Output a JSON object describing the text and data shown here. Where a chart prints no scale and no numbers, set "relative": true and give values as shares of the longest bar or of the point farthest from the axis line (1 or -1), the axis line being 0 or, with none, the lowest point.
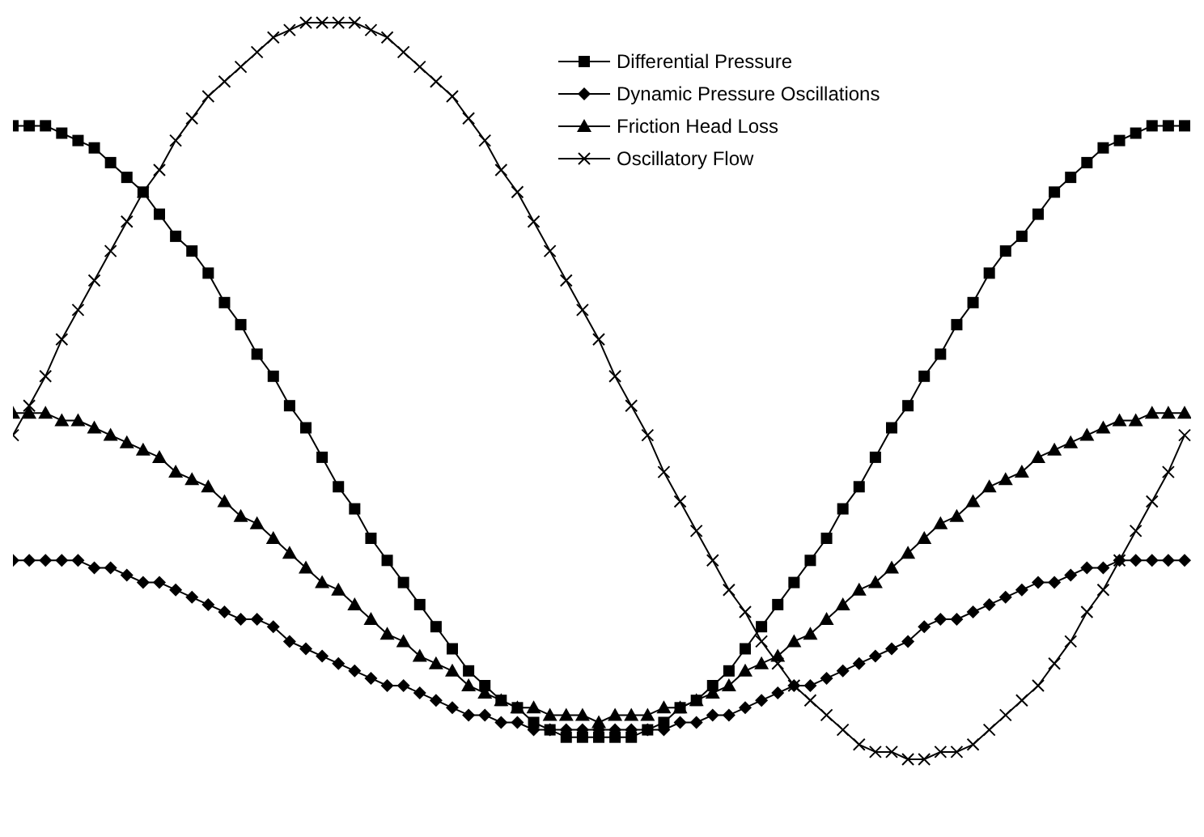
{
  "chart_data": {
    "type": "line",
    "relative": true,
    "categories": [
      null,
      null,
      null,
      null,
      null,
      null,
      null,
      null,
      null,
      null,
      null,
      null,
      null,
      null,
      null,
      null,
      null,
      null,
      null,
      null,
      null,
      null,
      null,
      null,
      null,
      null,
      null,
      null,
      null,
      null,
      null,
      null,
      null,
      null,
      null,
      null,
      null,
      null,
      null,
      null,
      null,
      null,
      null,
      null,
      null,
      null,
      null,
      null,
      null,
      null,
      null,
      null,
      null,
      null,
      null,
      null,
      null,
      null,
      null,
      null,
      null,
      null,
      null,
      null,
      null,
      null,
      null,
      null,
      null,
      null,
      null,
      null,
      null
    ],
    "legend": "top",
    "grid": false,
    "line_style": "solid",
    "series": [
      {
        "name": "Differential Pressure",
        "color": "#000000",
        "marker": "square",
        "values": [
          0.86,
          0.86,
          0.86,
          0.85,
          0.84,
          0.83,
          0.81,
          0.79,
          0.77,
          0.74,
          0.71,
          0.69,
          0.66,
          0.62,
          0.59,
          0.55,
          0.52,
          0.48,
          0.45,
          0.41,
          0.37,
          0.34,
          0.3,
          0.27,
          0.24,
          0.21,
          0.18,
          0.15,
          0.12,
          0.1,
          0.08,
          0.07,
          0.05,
          0.04,
          0.03,
          0.03,
          0.03,
          0.03,
          0.03,
          0.04,
          0.05,
          0.07,
          0.08,
          0.1,
          0.12,
          0.15,
          0.18,
          0.21,
          0.24,
          0.27,
          0.3,
          0.34,
          0.37,
          0.41,
          0.45,
          0.48,
          0.52,
          0.55,
          0.59,
          0.62,
          0.66,
          0.69,
          0.71,
          0.74,
          0.77,
          0.79,
          0.81,
          0.83,
          0.84,
          0.85,
          0.86,
          0.86,
          0.86
        ]
      },
      {
        "name": "Dynamic Pressure Oscillations",
        "color": "#000000",
        "marker": "diamond",
        "values": [
          0.27,
          0.27,
          0.27,
          0.27,
          0.27,
          0.26,
          0.26,
          0.25,
          0.24,
          0.24,
          0.23,
          0.22,
          0.21,
          0.2,
          0.19,
          0.19,
          0.18,
          0.16,
          0.15,
          0.14,
          0.13,
          0.12,
          0.11,
          0.1,
          0.1,
          0.09,
          0.08,
          0.07,
          0.06,
          0.06,
          0.05,
          0.05,
          0.04,
          0.04,
          0.04,
          0.04,
          0.04,
          0.04,
          0.04,
          0.04,
          0.04,
          0.05,
          0.05,
          0.06,
          0.06,
          0.07,
          0.08,
          0.09,
          0.1,
          0.1,
          0.11,
          0.12,
          0.13,
          0.14,
          0.15,
          0.16,
          0.18,
          0.19,
          0.19,
          0.2,
          0.21,
          0.22,
          0.23,
          0.24,
          0.24,
          0.25,
          0.26,
          0.26,
          0.27,
          0.27,
          0.27,
          0.27,
          0.27
        ]
      },
      {
        "name": "Friction Head Loss",
        "color": "#000000",
        "marker": "triangle",
        "values": [
          0.47,
          0.47,
          0.47,
          0.46,
          0.46,
          0.45,
          0.44,
          0.43,
          0.42,
          0.41,
          0.39,
          0.38,
          0.37,
          0.35,
          0.33,
          0.32,
          0.3,
          0.28,
          0.26,
          0.24,
          0.23,
          0.21,
          0.19,
          0.17,
          0.16,
          0.14,
          0.13,
          0.12,
          0.1,
          0.09,
          0.08,
          0.07,
          0.07,
          0.06,
          0.06,
          0.06,
          0.05,
          0.06,
          0.06,
          0.06,
          0.07,
          0.07,
          0.08,
          0.09,
          0.1,
          0.12,
          0.13,
          0.14,
          0.16,
          0.17,
          0.19,
          0.21,
          0.23,
          0.24,
          0.26,
          0.28,
          0.3,
          0.32,
          0.33,
          0.35,
          0.37,
          0.38,
          0.39,
          0.41,
          0.42,
          0.43,
          0.44,
          0.45,
          0.46,
          0.46,
          0.47,
          0.47,
          0.47
        ]
      },
      {
        "name": "Oscillatory Flow",
        "color": "#000000",
        "marker": "cross",
        "values": [
          0.44,
          0.48,
          0.52,
          0.57,
          0.61,
          0.65,
          0.69,
          0.73,
          0.77,
          0.8,
          0.84,
          0.87,
          0.9,
          0.92,
          0.94,
          0.96,
          0.98,
          0.99,
          1.0,
          1.0,
          1.0,
          1.0,
          0.99,
          0.98,
          0.96,
          0.94,
          0.92,
          0.9,
          0.87,
          0.84,
          0.8,
          0.77,
          0.73,
          0.69,
          0.65,
          0.61,
          0.57,
          0.52,
          0.48,
          0.44,
          0.39,
          0.35,
          0.31,
          0.27,
          0.23,
          0.2,
          0.16,
          0.13,
          0.1,
          0.08,
          0.06,
          0.04,
          0.02,
          0.01,
          0.01,
          0.0,
          0.0,
          0.01,
          0.01,
          0.02,
          0.04,
          0.06,
          0.08,
          0.1,
          0.13,
          0.16,
          0.2,
          0.23,
          0.27,
          0.31,
          0.35,
          0.39,
          0.44
        ]
      }
    ]
  }
}
